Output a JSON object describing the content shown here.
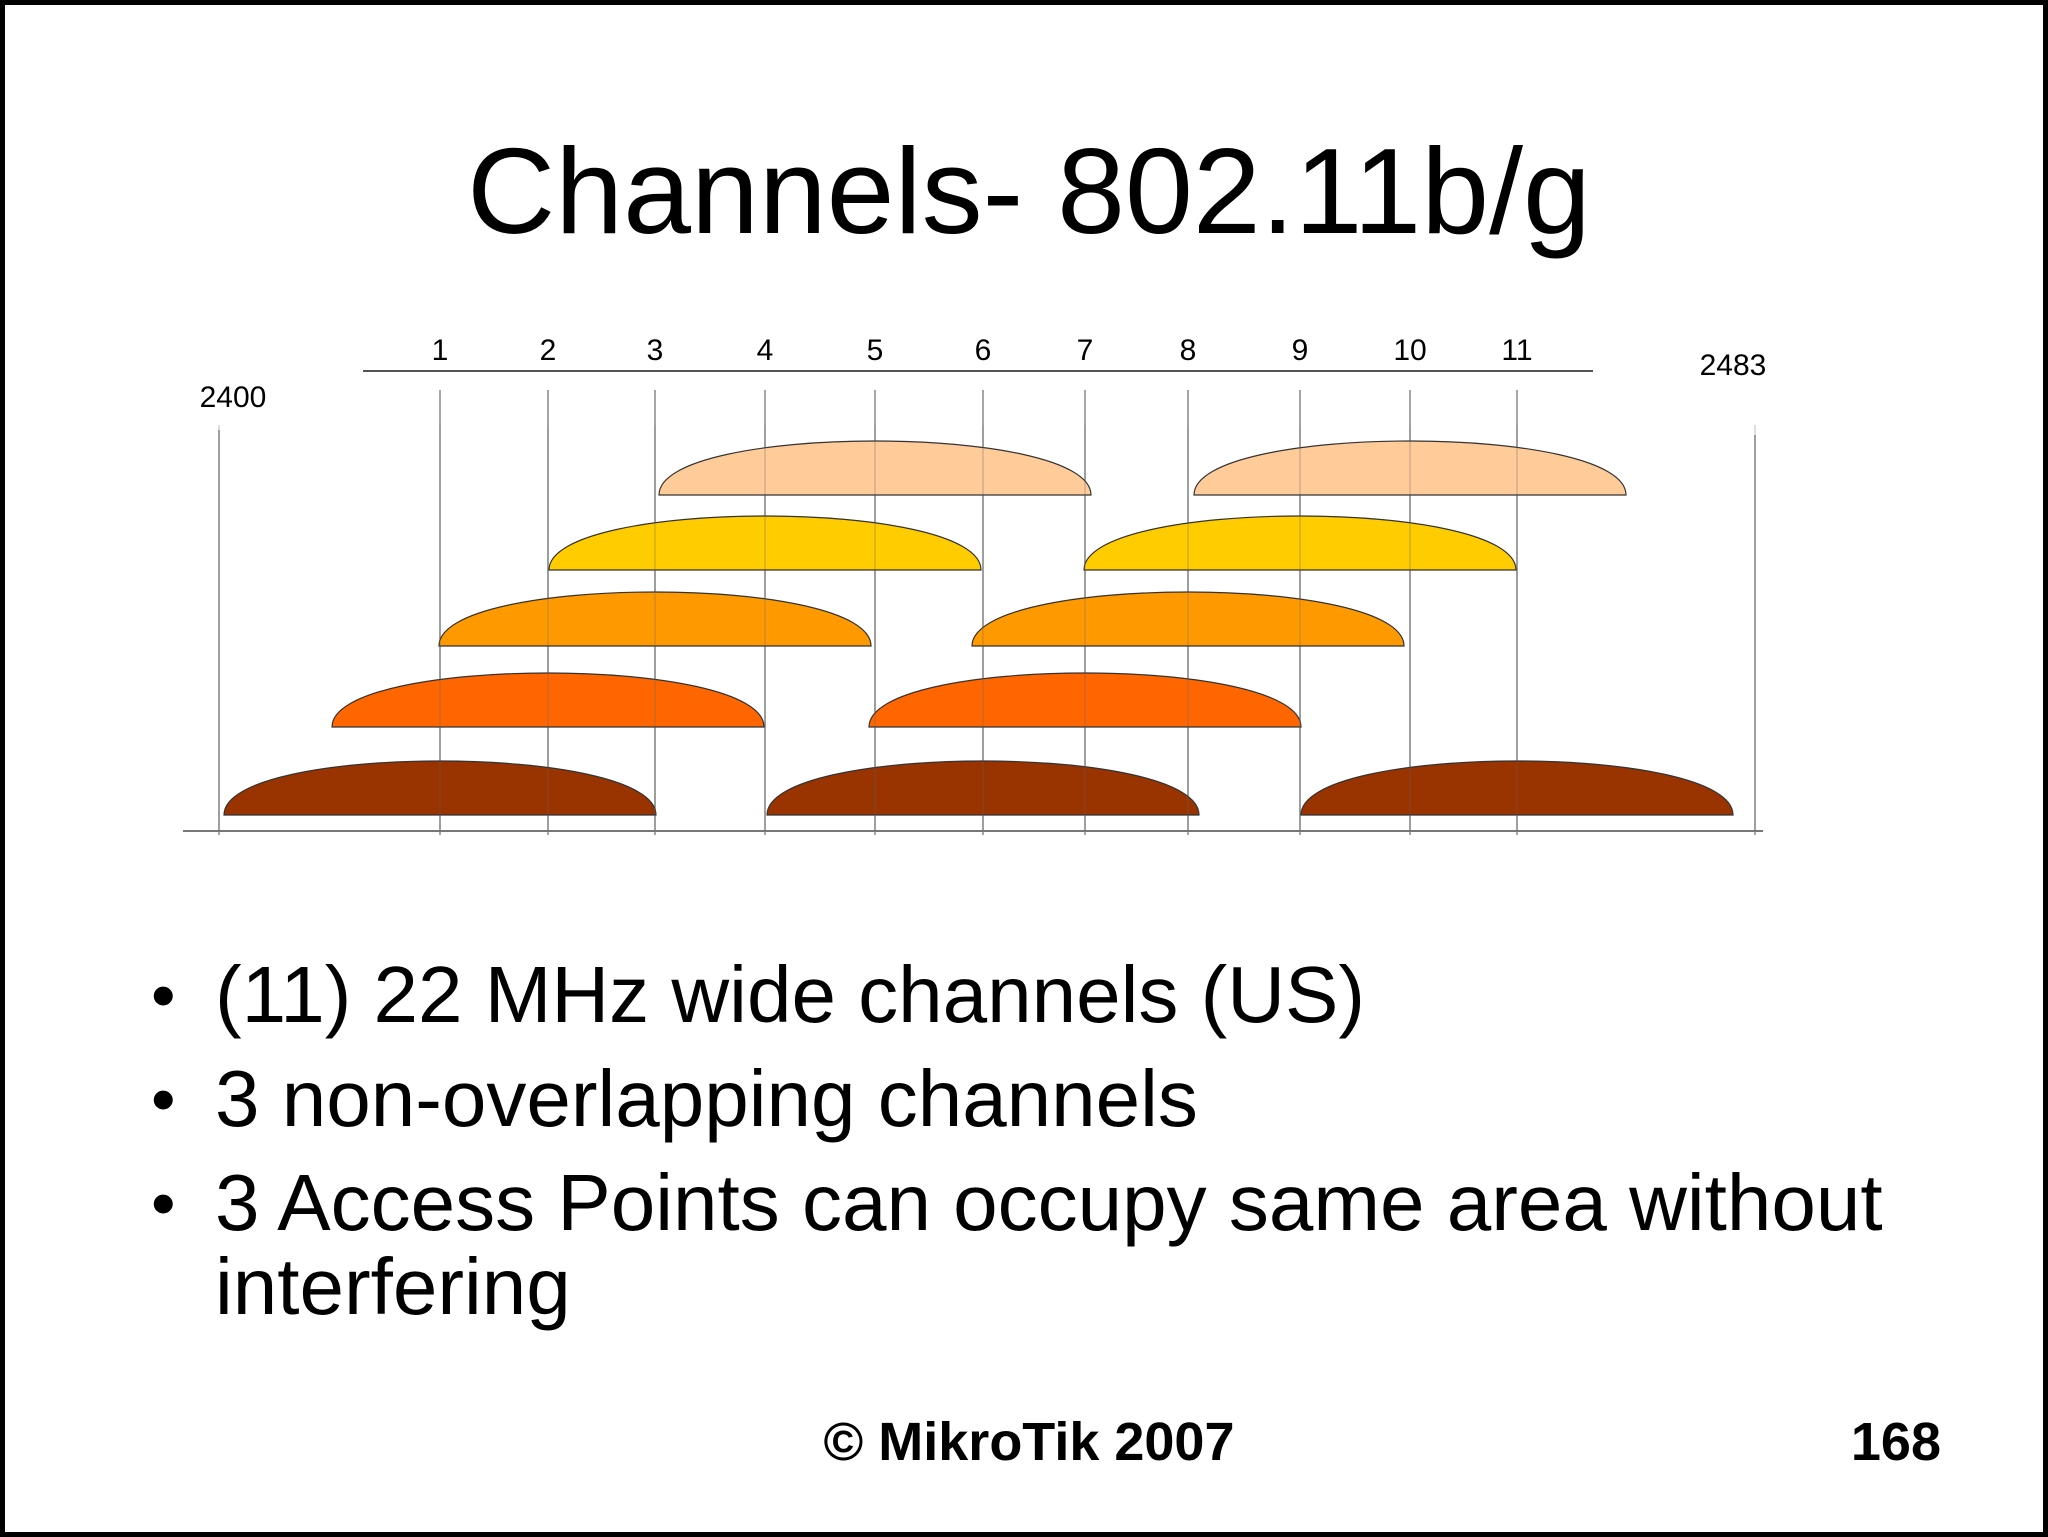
{
  "title": "Channels- 802.11b/g",
  "diagram": {
    "freq_start_label": "2400",
    "freq_end_label": "2483",
    "channel_labels": [
      "1",
      "2",
      "3",
      "4",
      "5",
      "6",
      "7",
      "8",
      "9",
      "10",
      "11"
    ],
    "channel_span_colors": {
      "row1": "#993300",
      "row2": "#ff6600",
      "row3": "#ff9900",
      "row4": "#ffcc00",
      "row5": "#ffcc99"
    },
    "channel_spans": [
      {
        "channel": 1,
        "row": 1,
        "color": "#993300"
      },
      {
        "channel": 6,
        "row": 1,
        "color": "#993300"
      },
      {
        "channel": 11,
        "row": 1,
        "color": "#993300"
      },
      {
        "channel": 2,
        "row": 2,
        "color": "#ff6600"
      },
      {
        "channel": 7,
        "row": 2,
        "color": "#ff6600"
      },
      {
        "channel": 3,
        "row": 3,
        "color": "#ff9900"
      },
      {
        "channel": 8,
        "row": 3,
        "color": "#ff9900"
      },
      {
        "channel": 4,
        "row": 4,
        "color": "#ffcc00"
      },
      {
        "channel": 9,
        "row": 4,
        "color": "#ffcc00"
      },
      {
        "channel": 5,
        "row": 5,
        "color": "#ffcc99"
      },
      {
        "channel": 10,
        "row": 5,
        "color": "#ffcc99"
      }
    ]
  },
  "bullets": [
    {
      "text": "(11)  22 MHz wide channels (US)"
    },
    {
      "text": "3 non-overlapping channels"
    },
    {
      "text": "3 Access Points can occupy same area without interfering"
    }
  ],
  "footer": {
    "copyright": "© MikroTik 2007",
    "page_number": "168"
  }
}
